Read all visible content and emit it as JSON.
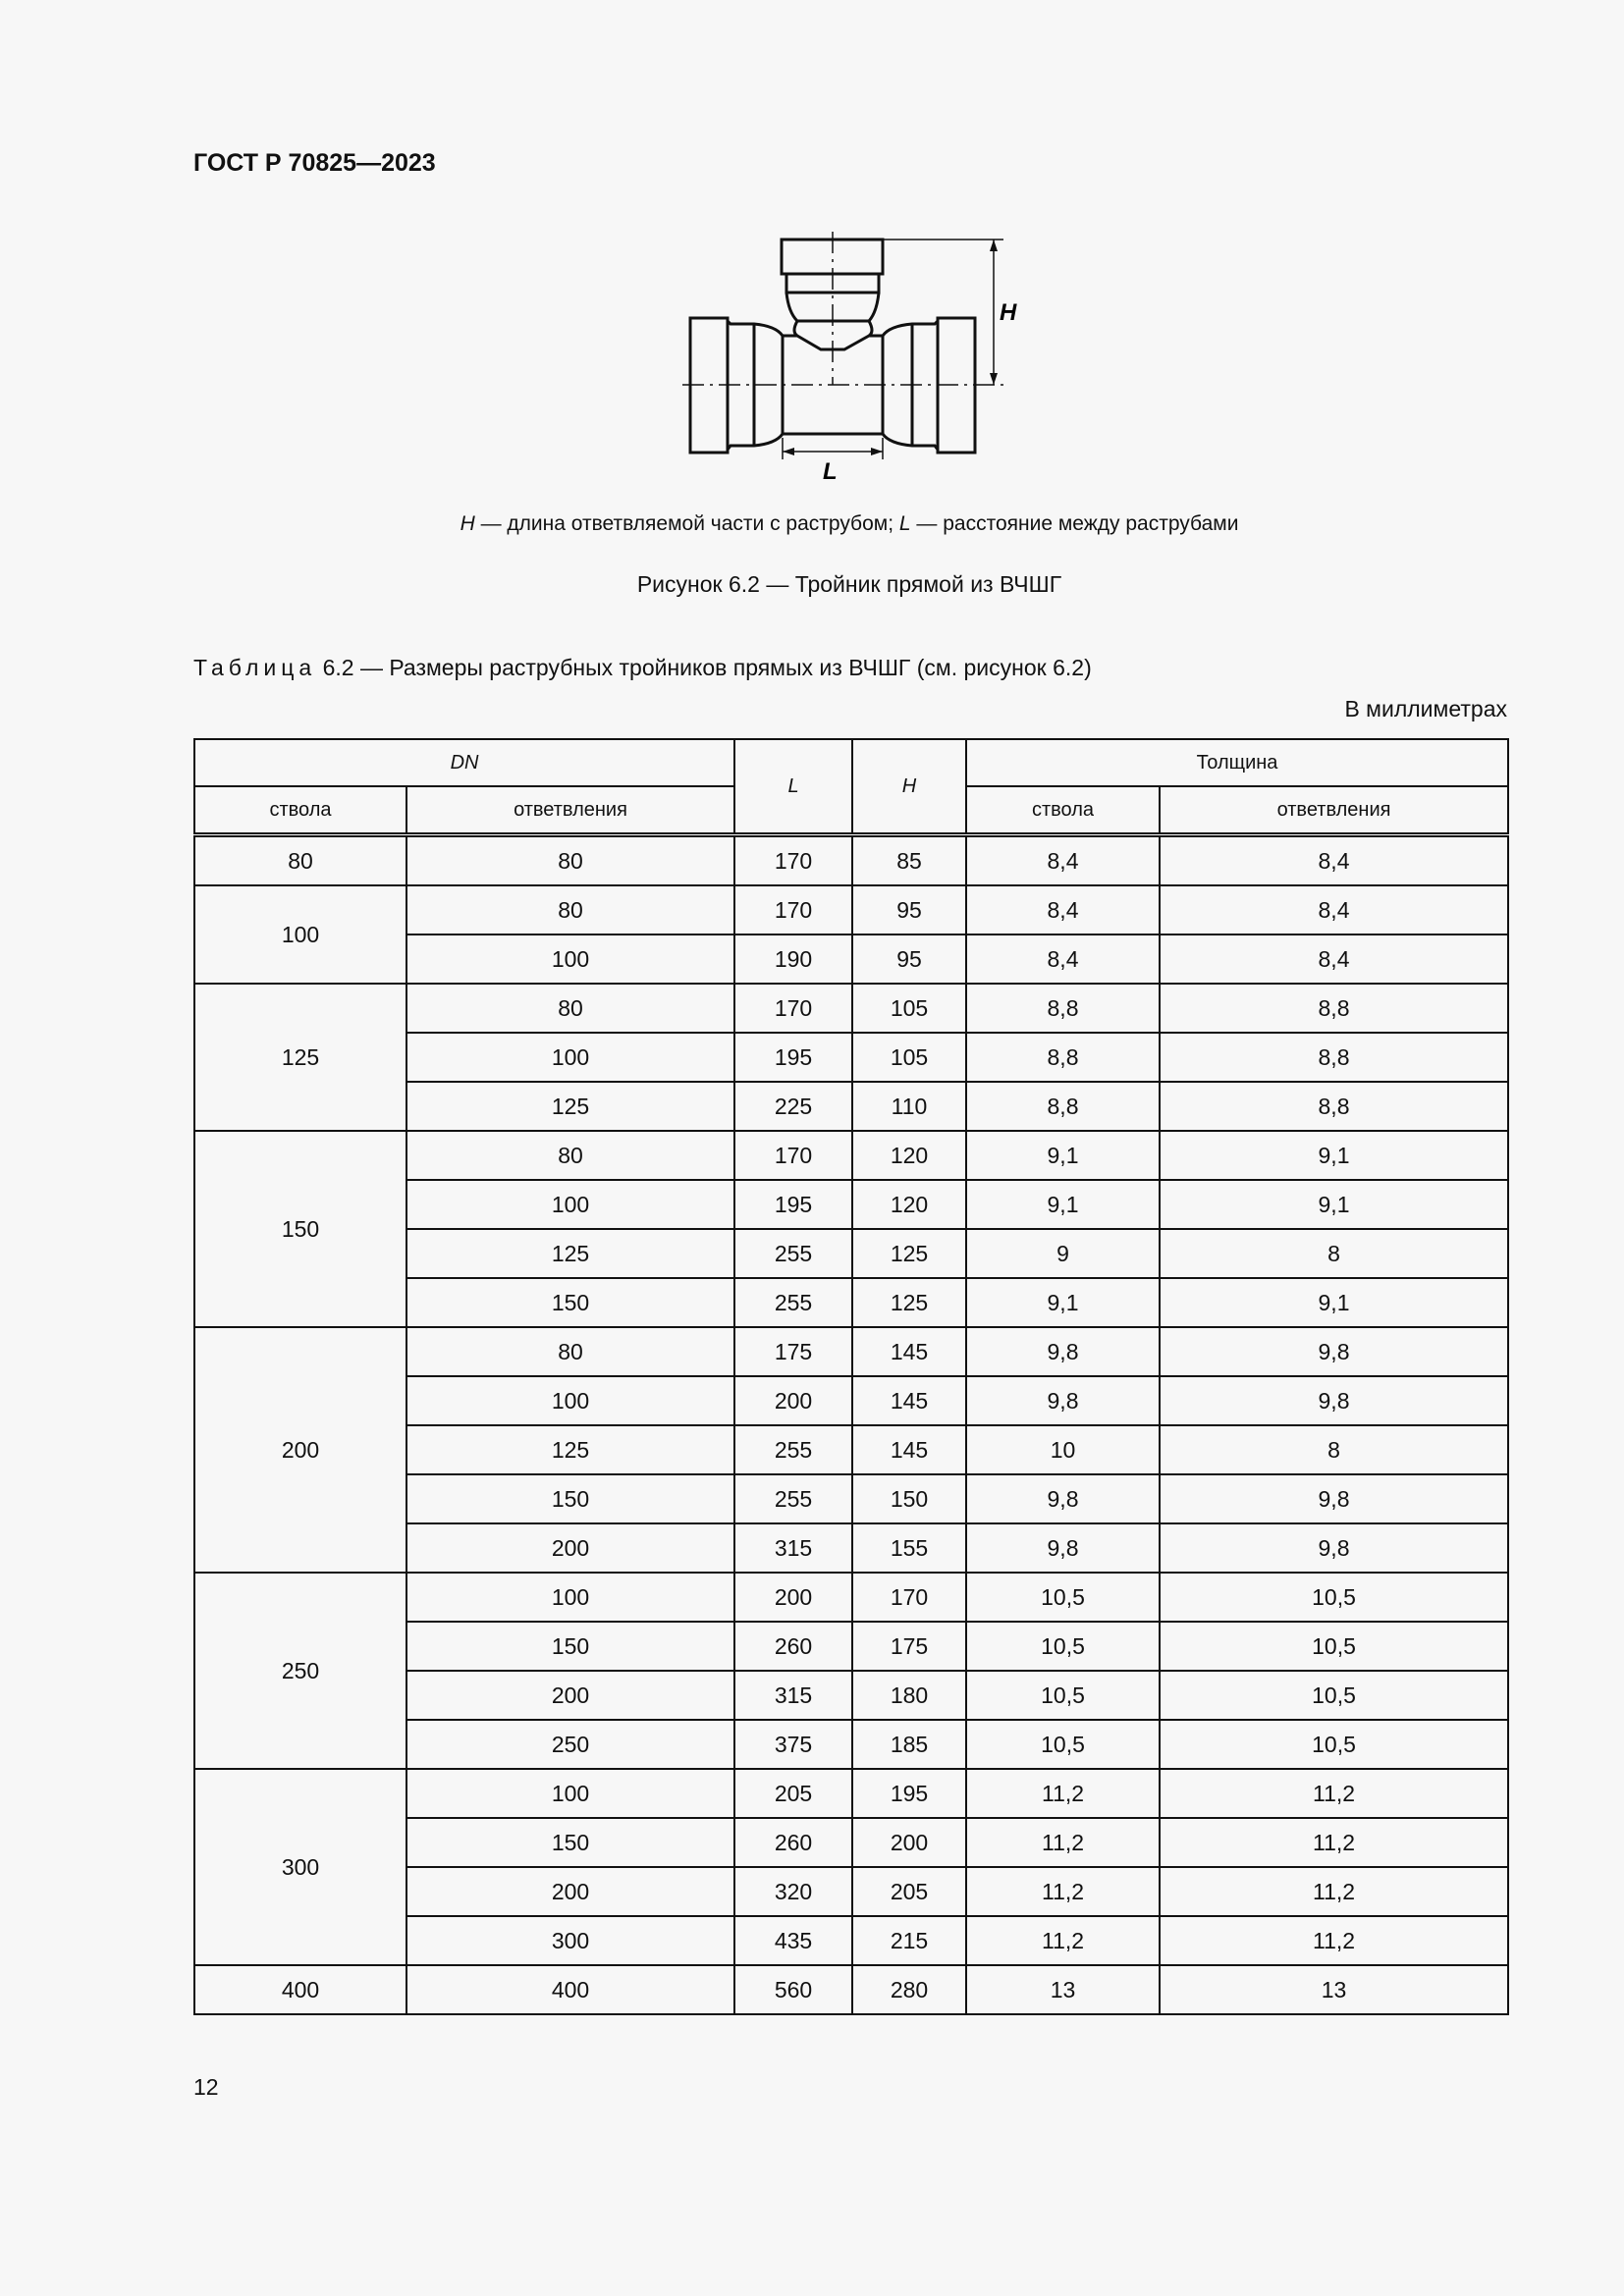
{
  "header": {
    "title": "ГОСТ Р 70825—2023"
  },
  "figure": {
    "dim_h": "H",
    "dim_l": "L",
    "legend_h": "H",
    "legend_h_text": " — длина ответвляемой части с раструбом; ",
    "legend_l": "L",
    "legend_l_text": " — расстояние между раструбами",
    "caption": "Рисунок 6.2 — Тройник прямой из ВЧШГ"
  },
  "table": {
    "caption_prefix": "Таблица",
    "caption_text": "6.2 — Размеры раструбных тройников прямых из ВЧШГ (см. рисунок 6.2)",
    "units": "В миллиметрах",
    "headers": {
      "dn": "DN",
      "l": "L",
      "h": "H",
      "thickness": "Толщина",
      "dn_trunk": "ствола",
      "dn_branch": "ответвления",
      "th_trunk": "ствола",
      "th_branch": "ответвления"
    },
    "groups": [
      {
        "trunk": "80",
        "rows": [
          [
            "80",
            "170",
            "85",
            "8,4",
            "8,4"
          ]
        ]
      },
      {
        "trunk": "100",
        "rows": [
          [
            "80",
            "170",
            "95",
            "8,4",
            "8,4"
          ],
          [
            "100",
            "190",
            "95",
            "8,4",
            "8,4"
          ]
        ]
      },
      {
        "trunk": "125",
        "rows": [
          [
            "80",
            "170",
            "105",
            "8,8",
            "8,8"
          ],
          [
            "100",
            "195",
            "105",
            "8,8",
            "8,8"
          ],
          [
            "125",
            "225",
            "110",
            "8,8",
            "8,8"
          ]
        ]
      },
      {
        "trunk": "150",
        "rows": [
          [
            "80",
            "170",
            "120",
            "9,1",
            "9,1"
          ],
          [
            "100",
            "195",
            "120",
            "9,1",
            "9,1"
          ],
          [
            "125",
            "255",
            "125",
            "9",
            "8"
          ],
          [
            "150",
            "255",
            "125",
            "9,1",
            "9,1"
          ]
        ]
      },
      {
        "trunk": "200",
        "rows": [
          [
            "80",
            "175",
            "145",
            "9,8",
            "9,8"
          ],
          [
            "100",
            "200",
            "145",
            "9,8",
            "9,8"
          ],
          [
            "125",
            "255",
            "145",
            "10",
            "8"
          ],
          [
            "150",
            "255",
            "150",
            "9,8",
            "9,8"
          ],
          [
            "200",
            "315",
            "155",
            "9,8",
            "9,8"
          ]
        ]
      },
      {
        "trunk": "250",
        "rows": [
          [
            "100",
            "200",
            "170",
            "10,5",
            "10,5"
          ],
          [
            "150",
            "260",
            "175",
            "10,5",
            "10,5"
          ],
          [
            "200",
            "315",
            "180",
            "10,5",
            "10,5"
          ],
          [
            "250",
            "375",
            "185",
            "10,5",
            "10,5"
          ]
        ]
      },
      {
        "trunk": "300",
        "rows": [
          [
            "100",
            "205",
            "195",
            "11,2",
            "11,2"
          ],
          [
            "150",
            "260",
            "200",
            "11,2",
            "11,2"
          ],
          [
            "200",
            "320",
            "205",
            "11,2",
            "11,2"
          ],
          [
            "300",
            "435",
            "215",
            "11,2",
            "11,2"
          ]
        ]
      },
      {
        "trunk": "400",
        "rows": [
          [
            "400",
            "560",
            "280",
            "13",
            "13"
          ]
        ]
      }
    ]
  },
  "footer": {
    "page_number": "12"
  }
}
